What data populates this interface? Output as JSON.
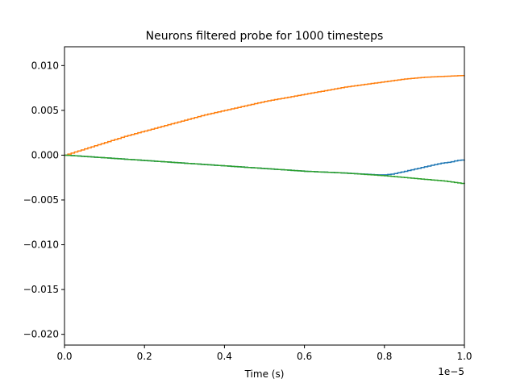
{
  "chart_data": {
    "type": "line",
    "title": "Neurons filtered probe for 1000 timesteps",
    "xlabel": "Time (s)",
    "ylabel": "",
    "x_offset_label": "1e−5",
    "xlim": [
      0.0,
      1.0
    ],
    "ylim": [
      -0.0212,
      0.0121
    ],
    "x_ticks": [
      0.0,
      0.2,
      0.4,
      0.6,
      0.8,
      1.0
    ],
    "x_tick_labels": [
      "0.0",
      "0.2",
      "0.4",
      "0.6",
      "0.8",
      "1.0"
    ],
    "y_ticks": [
      0.01,
      0.005,
      0.0,
      -0.005,
      -0.01,
      -0.015,
      -0.02
    ],
    "y_tick_labels": [
      "0.010",
      "0.005",
      "0.000",
      "−0.005",
      "−0.010",
      "−0.015",
      "−0.020"
    ],
    "grid": false,
    "legend": "none",
    "step": true,
    "series": [
      {
        "color": "#1f77b4",
        "x": [
          0.0,
          0.1,
          0.2,
          0.3,
          0.4,
          0.5,
          0.6,
          0.7,
          0.78,
          0.8,
          0.82,
          0.84,
          0.86,
          0.88,
          0.9,
          0.92,
          0.94,
          0.96,
          0.98,
          1.0
        ],
        "y": [
          0.0,
          -0.0003,
          -0.0006,
          -0.0009,
          -0.0012,
          -0.0015,
          -0.0018,
          -0.002,
          -0.0022,
          -0.0022,
          -0.0021,
          -0.0019,
          -0.0017,
          -0.0015,
          -0.0013,
          -0.0011,
          -0.0009,
          -0.0008,
          -0.0006,
          -0.0005
        ]
      },
      {
        "color": "#ff7f0e",
        "x": [
          0.0,
          0.05,
          0.1,
          0.15,
          0.2,
          0.25,
          0.3,
          0.35,
          0.4,
          0.45,
          0.5,
          0.55,
          0.6,
          0.65,
          0.7,
          0.75,
          0.8,
          0.85,
          0.9,
          0.95,
          1.0
        ],
        "y": [
          0.0,
          0.0007,
          0.0014,
          0.0021,
          0.0027,
          0.0033,
          0.0039,
          0.0045,
          0.005,
          0.0055,
          0.006,
          0.0064,
          0.0068,
          0.0072,
          0.0076,
          0.0079,
          0.0082,
          0.0085,
          0.0087,
          0.0088,
          0.0089
        ]
      },
      {
        "color": "#2ca02c",
        "x": [
          0.0,
          0.1,
          0.2,
          0.3,
          0.4,
          0.5,
          0.6,
          0.7,
          0.8,
          0.85,
          0.9,
          0.95,
          1.0
        ],
        "y": [
          0.0,
          -0.0003,
          -0.0006,
          -0.0009,
          -0.0012,
          -0.0015,
          -0.0018,
          -0.002,
          -0.0023,
          -0.0025,
          -0.0027,
          -0.0029,
          -0.0032
        ]
      }
    ]
  }
}
